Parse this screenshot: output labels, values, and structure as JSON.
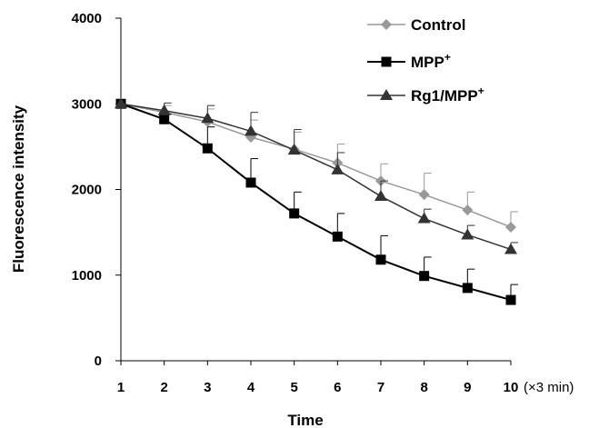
{
  "chart_data": {
    "type": "line",
    "xlabel": "Time",
    "ylabel": "Fluorescence intensity",
    "x_unit": "(×3 min)",
    "x": [
      1,
      2,
      3,
      4,
      5,
      6,
      7,
      8,
      9,
      10
    ],
    "xlim": [
      1,
      10
    ],
    "ylim": [
      0,
      4000
    ],
    "yticks": [
      0,
      1000,
      2000,
      3000,
      4000
    ],
    "grid": false,
    "legend_position": "top-right",
    "series": [
      {
        "name": "Control",
        "marker": "diamond",
        "color": "#999999",
        "values": [
          3000,
          2900,
          2790,
          2610,
          2470,
          2310,
          2100,
          1940,
          1760,
          1560
        ],
        "errors": [
          0,
          80,
          150,
          200,
          200,
          220,
          200,
          250,
          210,
          180
        ]
      },
      {
        "name": "MPP",
        "name_sup": "+",
        "marker": "square",
        "color": "#000000",
        "values": [
          3000,
          2820,
          2480,
          2080,
          1720,
          1450,
          1180,
          990,
          850,
          710
        ],
        "errors": [
          0,
          60,
          250,
          280,
          250,
          270,
          280,
          220,
          220,
          180
        ]
      },
      {
        "name": "Rg1/MPP",
        "name_sup": "+",
        "marker": "triangle",
        "color": "#333333",
        "values": [
          3000,
          2920,
          2830,
          2680,
          2460,
          2230,
          1920,
          1660,
          1470,
          1300
        ],
        "errors": [
          0,
          90,
          150,
          220,
          240,
          200,
          180,
          110,
          110,
          80
        ]
      }
    ]
  }
}
